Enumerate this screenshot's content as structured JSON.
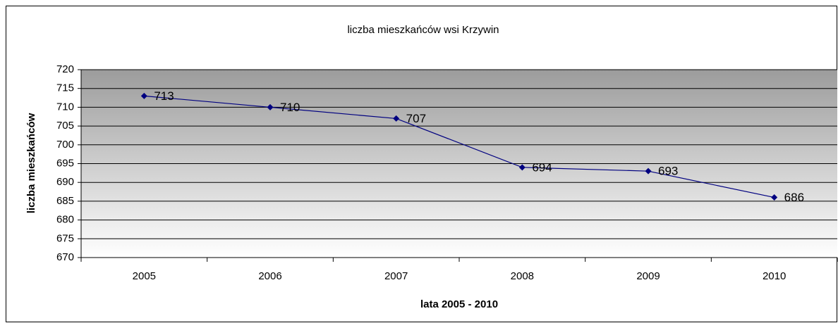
{
  "chart_data": {
    "type": "line",
    "title": "liczba mieszkańców wsi Krzywin",
    "x_label": "lata 2005 - 2010",
    "y_label": "liczba mieszkańców",
    "categories": [
      "2005",
      "2006",
      "2007",
      "2008",
      "2009",
      "2010"
    ],
    "series": [
      {
        "name": "liczba mieszkańców",
        "color": "#000080",
        "values": [
          713,
          710,
          707,
          694,
          693,
          686
        ]
      }
    ],
    "ylim": [
      670,
      720
    ],
    "yticks": [
      670,
      675,
      680,
      685,
      690,
      695,
      700,
      705,
      710,
      715,
      720
    ],
    "grid": true
  }
}
